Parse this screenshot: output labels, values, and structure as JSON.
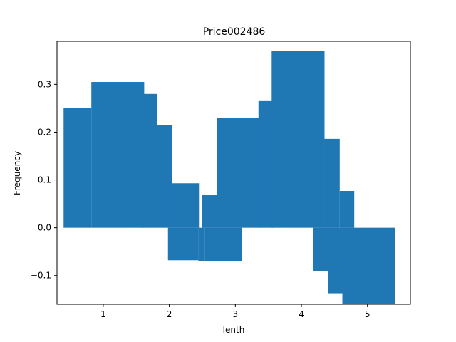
{
  "chart_data": {
    "type": "bar",
    "title": "Price002486",
    "xlabel": "lenth",
    "ylabel": "Frequency",
    "xlim": [
      0.3,
      5.65
    ],
    "ylim": [
      -0.16,
      0.39
    ],
    "x_ticks": [
      1,
      2,
      3,
      4,
      5
    ],
    "y_ticks": [
      -0.1,
      0.0,
      0.1,
      0.2,
      0.3
    ],
    "y_tick_labels": [
      "−0.1",
      "0.0",
      "0.1",
      "0.2",
      "0.3"
    ],
    "color": "#1f77b4",
    "bars": [
      {
        "x": 0.4,
        "width": 0.42,
        "value": 0.25
      },
      {
        "x": 0.82,
        "width": 0.8,
        "value": 0.305
      },
      {
        "x": 1.6,
        "width": 0.22,
        "value": 0.28
      },
      {
        "x": 1.82,
        "width": 0.22,
        "value": 0.215
      },
      {
        "x": 1.98,
        "width": 0.46,
        "value": -0.068
      },
      {
        "x": 2.02,
        "width": 0.44,
        "value": 0.093
      },
      {
        "x": 2.44,
        "width": 0.1,
        "value": -0.07
      },
      {
        "x": 2.49,
        "width": 0.25,
        "value": 0.068
      },
      {
        "x": 2.54,
        "width": 0.56,
        "value": -0.07
      },
      {
        "x": 2.72,
        "width": 0.65,
        "value": 0.23
      },
      {
        "x": 3.35,
        "width": 0.22,
        "value": 0.265
      },
      {
        "x": 3.55,
        "width": 0.8,
        "value": 0.37
      },
      {
        "x": 4.18,
        "width": 0.22,
        "value": -0.09
      },
      {
        "x": 4.35,
        "width": 0.23,
        "value": 0.186
      },
      {
        "x": 4.4,
        "width": 0.22,
        "value": -0.137
      },
      {
        "x": 4.58,
        "width": 0.22,
        "value": 0.077
      },
      {
        "x": 4.62,
        "width": 0.8,
        "value": -0.16
      },
      {
        "x": 4.78,
        "width": 0.64,
        "value": 0.0
      }
    ]
  }
}
